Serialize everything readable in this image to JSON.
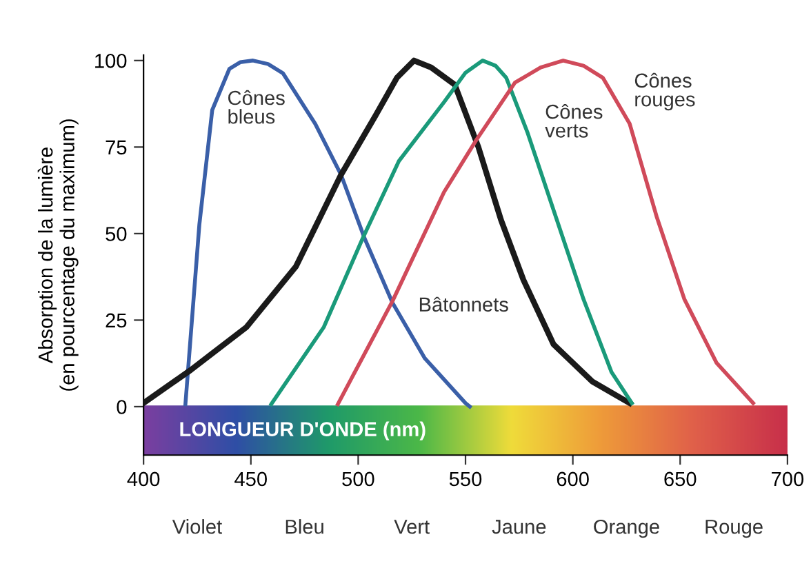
{
  "chart_data": {
    "type": "line",
    "xlabel": "LONGUEUR D'ONDE (nm)",
    "ylabel": "Absorption de la lumière\n(en pourcentage du maximum)",
    "xlim": [
      400,
      700
    ],
    "xticks": [
      400,
      450,
      500,
      550,
      600,
      650,
      700
    ],
    "ylim": [
      -14,
      101.6
    ],
    "yticks": [
      0,
      25,
      50,
      75,
      100
    ],
    "grid": false,
    "legend": false,
    "marker": "none",
    "line_style": "solid",
    "annotations": [
      "Violet",
      "Bleu",
      "Vert",
      "Jaune",
      "Orange",
      "Rouge"
    ],
    "series": [
      {
        "name": "Cônes bleus",
        "color": "#3a5fa8",
        "x": [
          419.5,
          426,
          432,
          440,
          445,
          451,
          458,
          465,
          480,
          492,
          503,
          516,
          531,
          550,
          552
        ],
        "values": [
          0.7,
          52.6,
          85.7,
          97.6,
          99.5,
          100,
          99,
          96.3,
          81.7,
          67,
          48.6,
          30,
          14,
          1,
          0
        ]
      },
      {
        "name": "Bâtonnets",
        "color": "#1a1a1a",
        "x": [
          400.6,
          422,
          448,
          471,
          492,
          508,
          518,
          526,
          534,
          545,
          556,
          566.5,
          577,
          591,
          609,
          626.5
        ],
        "values": [
          1.3,
          10.6,
          23,
          40.5,
          67,
          84,
          95,
          100,
          98,
          93,
          75,
          54,
          36.6,
          18,
          7.3,
          1
        ]
      },
      {
        "name": "Cônes verts",
        "color": "#1a9a7a",
        "x": [
          459.5,
          484,
          502,
          519,
          540,
          550,
          558,
          564,
          569,
          579,
          592,
          605,
          618,
          627.5
        ],
        "values": [
          0.7,
          23,
          48.5,
          71,
          88,
          96.5,
          100,
          98.5,
          95,
          79,
          55,
          31,
          10,
          1
        ]
      },
      {
        "name": "Cônes rouges",
        "color": "#d04a5a",
        "x": [
          490.5,
          516,
          540,
          555,
          573,
          585,
          595.5,
          605,
          614,
          626.5,
          639,
          652,
          667,
          684
        ],
        "values": [
          0.7,
          30.5,
          62,
          77,
          93.6,
          98,
          100,
          98.5,
          95,
          81.7,
          55,
          31,
          12.6,
          1
        ]
      }
    ]
  }
}
